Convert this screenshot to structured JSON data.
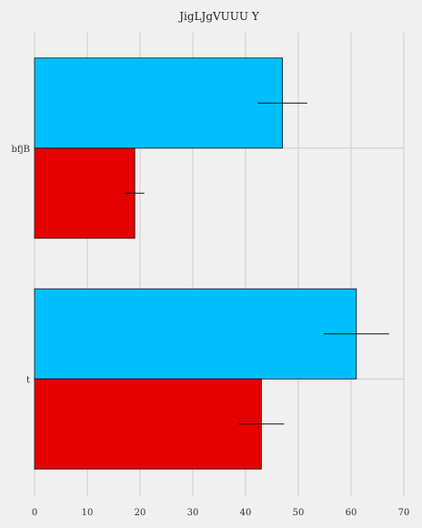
{
  "chart_data": {
    "type": "bar",
    "orientation": "horizontal",
    "title": "JigLJgVUUU Y",
    "xlabel": "",
    "ylabel": "",
    "xlim": [
      0,
      70
    ],
    "x_ticks": [
      0,
      10,
      20,
      30,
      40,
      50,
      60,
      70
    ],
    "grid": true,
    "categories": [
      "bfjB",
      "t"
    ],
    "series": [
      {
        "color": "#00bfff",
        "values": [
          47,
          61
        ],
        "errors": [
          4.7,
          6.2
        ]
      },
      {
        "color": "#e60000",
        "values": [
          19,
          43
        ],
        "errors": [
          1.8,
          4.3
        ]
      }
    ]
  }
}
